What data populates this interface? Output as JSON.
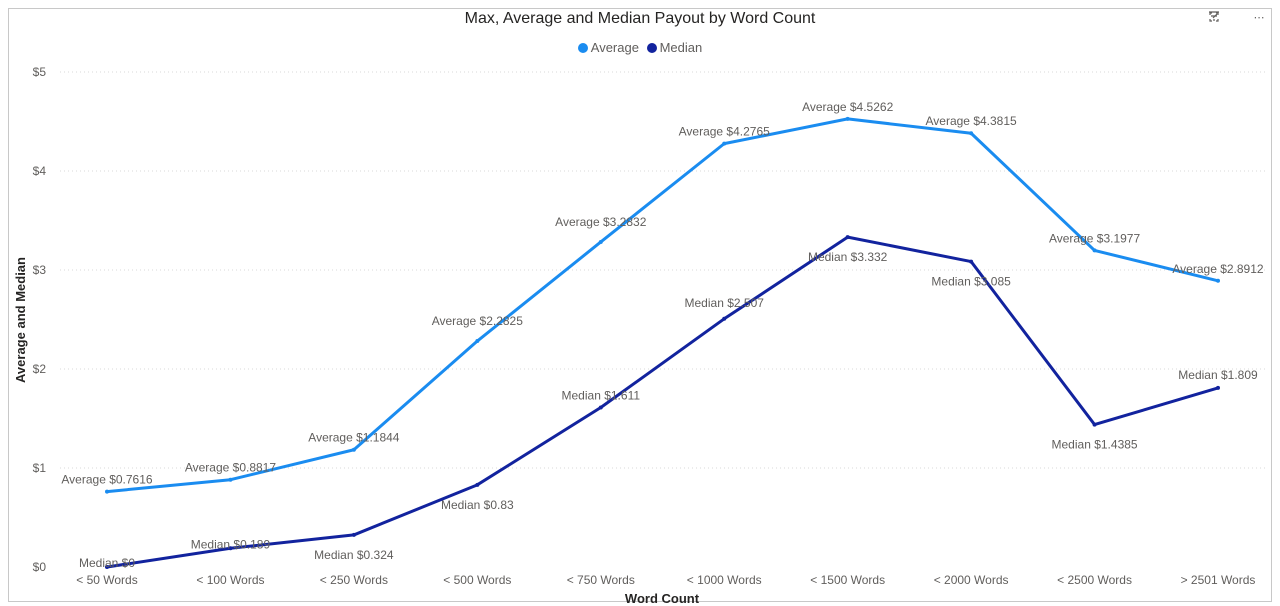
{
  "chart_data": {
    "type": "line",
    "title": "Max, Average and Median Payout by Word Count",
    "xlabel": "Word Count",
    "ylabel": "Average and Median",
    "categories": [
      "< 50 Words",
      "< 100 Words",
      "< 250 Words",
      "< 500 Words",
      "< 750 Words",
      "< 1000 Words",
      "< 1500 Words",
      "< 2000 Words",
      "< 2500 Words",
      "> 2501 Words"
    ],
    "series": [
      {
        "name": "Average",
        "color": "#1a8cf0",
        "values": [
          0.7616,
          0.8817,
          1.1844,
          2.2825,
          3.2832,
          4.2765,
          4.5262,
          4.3815,
          3.1977,
          2.8912
        ],
        "labels": [
          "Average $0.7616",
          "Average $0.8817",
          "Average $1.1844",
          "Average $2.2825",
          "Average $3.2832",
          "Average $4.2765",
          "Average $4.5262",
          "Average $4.3815",
          "Average $3.1977",
          "Average $2.8912"
        ]
      },
      {
        "name": "Median",
        "color": "#12239e",
        "values": [
          0,
          0.189,
          0.324,
          0.83,
          1.611,
          2.507,
          3.332,
          3.085,
          1.4385,
          1.809
        ],
        "labels": [
          "Median $0",
          "Median $0.189",
          "Median $0.324",
          "Median $0.83",
          "Median $1.611",
          "Median $2.507",
          "Median $3.332",
          "Median $3.085",
          "Median $1.4385",
          "Median $1.809"
        ]
      }
    ],
    "ylim": [
      0,
      5
    ],
    "yticks": [
      0,
      1,
      2,
      3,
      4,
      5
    ],
    "ytick_labels": [
      "$0",
      "$1",
      "$2",
      "$3",
      "$4",
      "$5"
    ],
    "grid": true,
    "legend_position": "top-center"
  },
  "toolbar": {
    "filter_icon": "filter-icon",
    "focus_icon": "focus-mode-icon",
    "more_icon": "more-options-icon"
  }
}
